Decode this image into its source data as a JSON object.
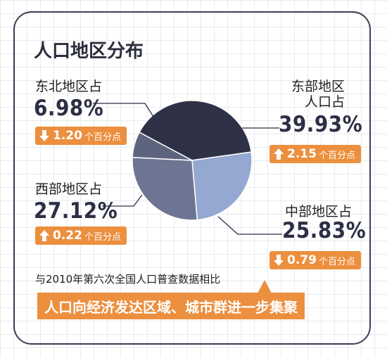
{
  "title": "人口地区分布",
  "colors": {
    "accent": "#ec8f3e",
    "east": "#2f3147",
    "central": "#95a8d1",
    "west": "#6e7592",
    "northeast": "#5d647e"
  },
  "regions": {
    "east": {
      "label_line1": "东部地区",
      "label_line2": "人口占",
      "value": "39.93%",
      "change": "2.15",
      "unit": "个百分点",
      "direction": "up"
    },
    "central": {
      "label": "中部地区占",
      "value": "25.83%",
      "change": "0.79",
      "unit": "个百分点",
      "direction": "down"
    },
    "west": {
      "label": "西部地区占",
      "value": "27.12%",
      "change": "0.22",
      "unit": "个百分点",
      "direction": "up"
    },
    "northeast": {
      "label": "东北地区占",
      "value": "6.98%",
      "change": "1.20",
      "unit": "个百分点",
      "direction": "down"
    }
  },
  "note": "与2010年第六次全国人口普查数据相比",
  "banner": "人口向经济发达区域、城市群进一步集聚",
  "chart_data": {
    "type": "pie",
    "title": "人口地区分布",
    "categories": [
      "东部地区",
      "中部地区",
      "西部地区",
      "东北地区"
    ],
    "values": [
      39.93,
      25.83,
      27.12,
      6.98
    ],
    "changes": [
      2.15,
      -0.79,
      0.22,
      -1.2
    ],
    "change_unit": "个百分点"
  }
}
